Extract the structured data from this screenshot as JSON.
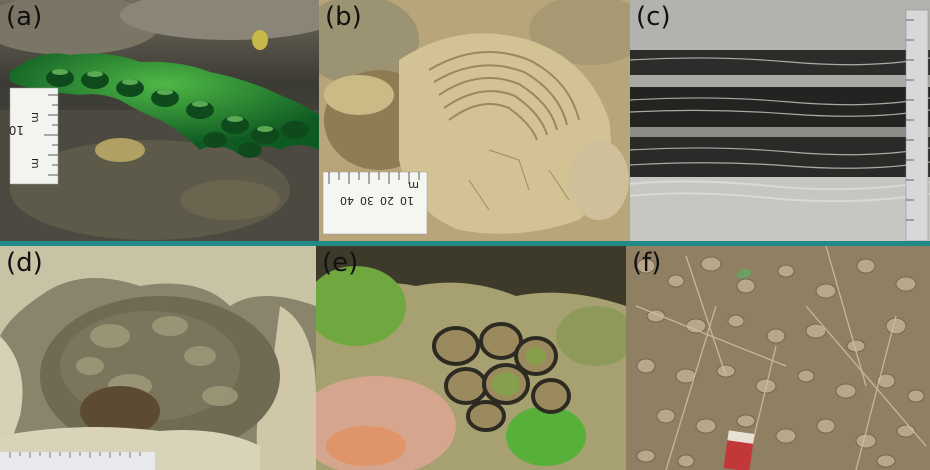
{
  "figure": {
    "panels": [
      {
        "label": "(a)",
        "ruler_text": [
          "m",
          "m",
          "10",
          "m"
        ]
      },
      {
        "label": "(b)",
        "ruler_text": [
          "10",
          "20",
          "30",
          "40",
          "m"
        ]
      },
      {
        "label": "(c)"
      },
      {
        "label": "(d)"
      },
      {
        "label": "(e)"
      },
      {
        "label": "(f)"
      }
    ],
    "divider_color": "#1f8a86"
  }
}
